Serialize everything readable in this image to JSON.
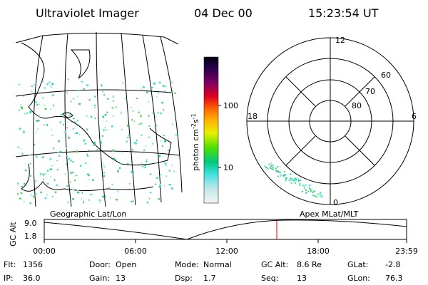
{
  "header": {
    "instrument": "Ultraviolet Imager",
    "date": "04 Dec 00",
    "time": "15:23:54 UT"
  },
  "colorbar": {
    "unit": {
      "base": "photon cm",
      "exp1": "-2",
      "mid": "s",
      "exp2": "-1"
    },
    "ticks": [
      "100",
      "10"
    ]
  },
  "polar": {
    "mlt_labels": [
      "12",
      "18",
      "6",
      "0"
    ],
    "lat_labels": [
      "60",
      "70",
      "80"
    ]
  },
  "timeline": {
    "left_title": "Geographic Lat/Lon",
    "right_title": "Apex MLat/MLT",
    "axis_label": "GC Alt",
    "y_labels": [
      "9.0",
      "1.8"
    ],
    "x_labels": [
      "00:00",
      "06:00",
      "12:00",
      "18:00",
      "23:59"
    ]
  },
  "status": [
    [
      {
        "label": "Flt:",
        "value": "1356"
      },
      {
        "label": "Door:",
        "value": "Open"
      },
      {
        "label": "Mode:",
        "value": "Normal"
      },
      {
        "label": "GC Alt:",
        "value": "8.6 Re"
      },
      {
        "label": "GLat:",
        "value": "-2.8"
      }
    ],
    [
      {
        "label": "IP:",
        "value": "36.0"
      },
      {
        "label": "Gain:",
        "value": "13"
      },
      {
        "label": "Dsp:",
        "value": "1.7"
      },
      {
        "label": "Seq:",
        "value": "13"
      },
      {
        "label": "GLon:",
        "value": "76.3"
      }
    ]
  ]
}
